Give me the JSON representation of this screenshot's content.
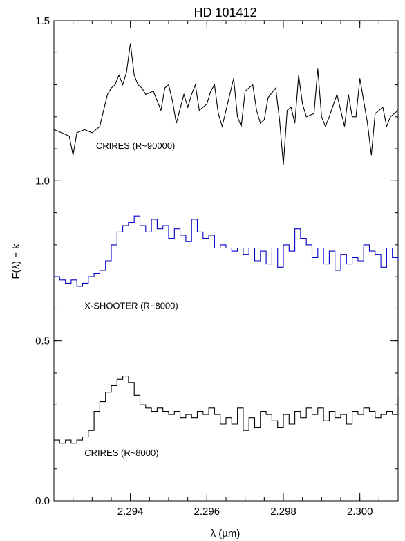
{
  "chart_data": {
    "type": "line",
    "title": "HD 101412",
    "xlabel": "λ (µm)",
    "ylabel": "F(λ) + k",
    "xlim": [
      2.292,
      2.301
    ],
    "ylim": [
      0.0,
      1.5
    ],
    "xticks": [
      2.294,
      2.296,
      2.298,
      2.3
    ],
    "xtick_labels": [
      "2.294",
      "2.296",
      "2.298",
      "2.300"
    ],
    "yticks": [
      0.0,
      0.5,
      1.0,
      1.5
    ],
    "ytick_labels": [
      "0.0",
      "0.5",
      "1.0",
      "1.5"
    ],
    "grid": false,
    "series": [
      {
        "name": "CRIRES (R~90000)",
        "color": "#000000",
        "style": "line",
        "label_at": [
          2.2931,
          1.1
        ],
        "x": [
          2.292,
          2.2922,
          2.2924,
          2.2925,
          2.2926,
          2.2928,
          2.293,
          2.2932,
          2.2933,
          2.2934,
          2.2935,
          2.2936,
          2.2937,
          2.2938,
          2.2939,
          2.294,
          2.2941,
          2.2942,
          2.2943,
          2.2944,
          2.2946,
          2.2948,
          2.2949,
          2.295,
          2.2951,
          2.2952,
          2.2954,
          2.2955,
          2.2956,
          2.2957,
          2.2958,
          2.296,
          2.2961,
          2.2962,
          2.2963,
          2.2964,
          2.2966,
          2.2967,
          2.2968,
          2.2969,
          2.297,
          2.2972,
          2.2973,
          2.2974,
          2.2975,
          2.2976,
          2.2978,
          2.2979,
          2.298,
          2.2981,
          2.2982,
          2.2983,
          2.2984,
          2.2985,
          2.2986,
          2.2988,
          2.2989,
          2.299,
          2.2991,
          2.2992,
          2.2994,
          2.2996,
          2.2997,
          2.2998,
          2.2999,
          2.3,
          2.3002,
          2.3003,
          2.3004,
          2.3006,
          2.3007,
          2.3008,
          2.301
        ],
        "y": [
          1.16,
          1.15,
          1.14,
          1.08,
          1.15,
          1.16,
          1.15,
          1.17,
          1.22,
          1.27,
          1.29,
          1.3,
          1.33,
          1.3,
          1.34,
          1.43,
          1.33,
          1.3,
          1.29,
          1.27,
          1.28,
          1.22,
          1.29,
          1.3,
          1.25,
          1.18,
          1.27,
          1.23,
          1.27,
          1.3,
          1.22,
          1.24,
          1.28,
          1.3,
          1.21,
          1.17,
          1.27,
          1.32,
          1.2,
          1.17,
          1.28,
          1.3,
          1.22,
          1.18,
          1.19,
          1.26,
          1.29,
          1.19,
          1.05,
          1.22,
          1.23,
          1.18,
          1.33,
          1.24,
          1.2,
          1.21,
          1.35,
          1.2,
          1.17,
          1.2,
          1.27,
          1.17,
          1.27,
          1.2,
          1.2,
          1.32,
          1.18,
          1.08,
          1.21,
          1.23,
          1.17,
          1.2,
          1.22
        ]
      },
      {
        "name": "X-SHOOTER (R~8000)",
        "color": "#0000cc",
        "style": "step",
        "label_at": [
          2.2928,
          0.6
        ],
        "x": [
          2.292,
          2.29215,
          2.2923,
          2.29245,
          2.2926,
          2.29275,
          2.2929,
          2.29305,
          2.2932,
          2.29335,
          2.2935,
          2.29365,
          2.2938,
          2.29395,
          2.2941,
          2.29425,
          2.2944,
          2.29455,
          2.2947,
          2.29485,
          2.295,
          2.29515,
          2.2953,
          2.29545,
          2.2956,
          2.29575,
          2.2959,
          2.29605,
          2.2962,
          2.29635,
          2.2965,
          2.29665,
          2.2968,
          2.29695,
          2.2971,
          2.29725,
          2.2974,
          2.29755,
          2.2977,
          2.29785,
          2.298,
          2.29815,
          2.2983,
          2.29845,
          2.2986,
          2.29875,
          2.2989,
          2.29905,
          2.2992,
          2.29935,
          2.2995,
          2.29965,
          2.2998,
          2.29995,
          2.3001,
          2.30025,
          2.3004,
          2.30055,
          2.3007,
          2.30085,
          2.301
        ],
        "y": [
          0.7,
          0.69,
          0.68,
          0.69,
          0.67,
          0.68,
          0.7,
          0.71,
          0.72,
          0.75,
          0.8,
          0.84,
          0.86,
          0.87,
          0.89,
          0.86,
          0.84,
          0.88,
          0.85,
          0.86,
          0.82,
          0.85,
          0.83,
          0.81,
          0.88,
          0.84,
          0.82,
          0.83,
          0.79,
          0.8,
          0.79,
          0.78,
          0.79,
          0.77,
          0.79,
          0.75,
          0.78,
          0.74,
          0.79,
          0.73,
          0.8,
          0.78,
          0.85,
          0.82,
          0.8,
          0.76,
          0.79,
          0.74,
          0.78,
          0.72,
          0.77,
          0.74,
          0.76,
          0.75,
          0.8,
          0.78,
          0.77,
          0.73,
          0.79,
          0.76,
          0.75
        ]
      },
      {
        "name": "CRIRES (R~8000)",
        "color": "#000000",
        "style": "step",
        "label_at": [
          2.2928,
          0.14
        ],
        "x": [
          2.292,
          2.29215,
          2.2923,
          2.29245,
          2.2926,
          2.29275,
          2.2929,
          2.29305,
          2.2932,
          2.29335,
          2.2935,
          2.29365,
          2.2938,
          2.29395,
          2.2941,
          2.29425,
          2.2944,
          2.29455,
          2.2947,
          2.29485,
          2.295,
          2.29515,
          2.2953,
          2.29545,
          2.2956,
          2.29575,
          2.2959,
          2.29605,
          2.2962,
          2.29635,
          2.2965,
          2.29665,
          2.2968,
          2.29695,
          2.2971,
          2.29725,
          2.2974,
          2.29755,
          2.2977,
          2.29785,
          2.298,
          2.29815,
          2.2983,
          2.29845,
          2.2986,
          2.29875,
          2.2989,
          2.29905,
          2.2992,
          2.29935,
          2.2995,
          2.29965,
          2.2998,
          2.29995,
          2.3001,
          2.30025,
          2.3004,
          2.30055,
          2.3007,
          2.30085,
          2.301
        ],
        "y": [
          0.19,
          0.18,
          0.19,
          0.18,
          0.19,
          0.2,
          0.22,
          0.28,
          0.31,
          0.34,
          0.36,
          0.38,
          0.39,
          0.37,
          0.33,
          0.3,
          0.29,
          0.28,
          0.29,
          0.28,
          0.27,
          0.28,
          0.26,
          0.27,
          0.26,
          0.28,
          0.27,
          0.29,
          0.27,
          0.24,
          0.26,
          0.24,
          0.29,
          0.22,
          0.26,
          0.23,
          0.28,
          0.27,
          0.25,
          0.23,
          0.27,
          0.24,
          0.28,
          0.26,
          0.29,
          0.27,
          0.29,
          0.25,
          0.28,
          0.26,
          0.27,
          0.24,
          0.28,
          0.27,
          0.29,
          0.28,
          0.26,
          0.27,
          0.28,
          0.27,
          0.32
        ]
      }
    ]
  }
}
